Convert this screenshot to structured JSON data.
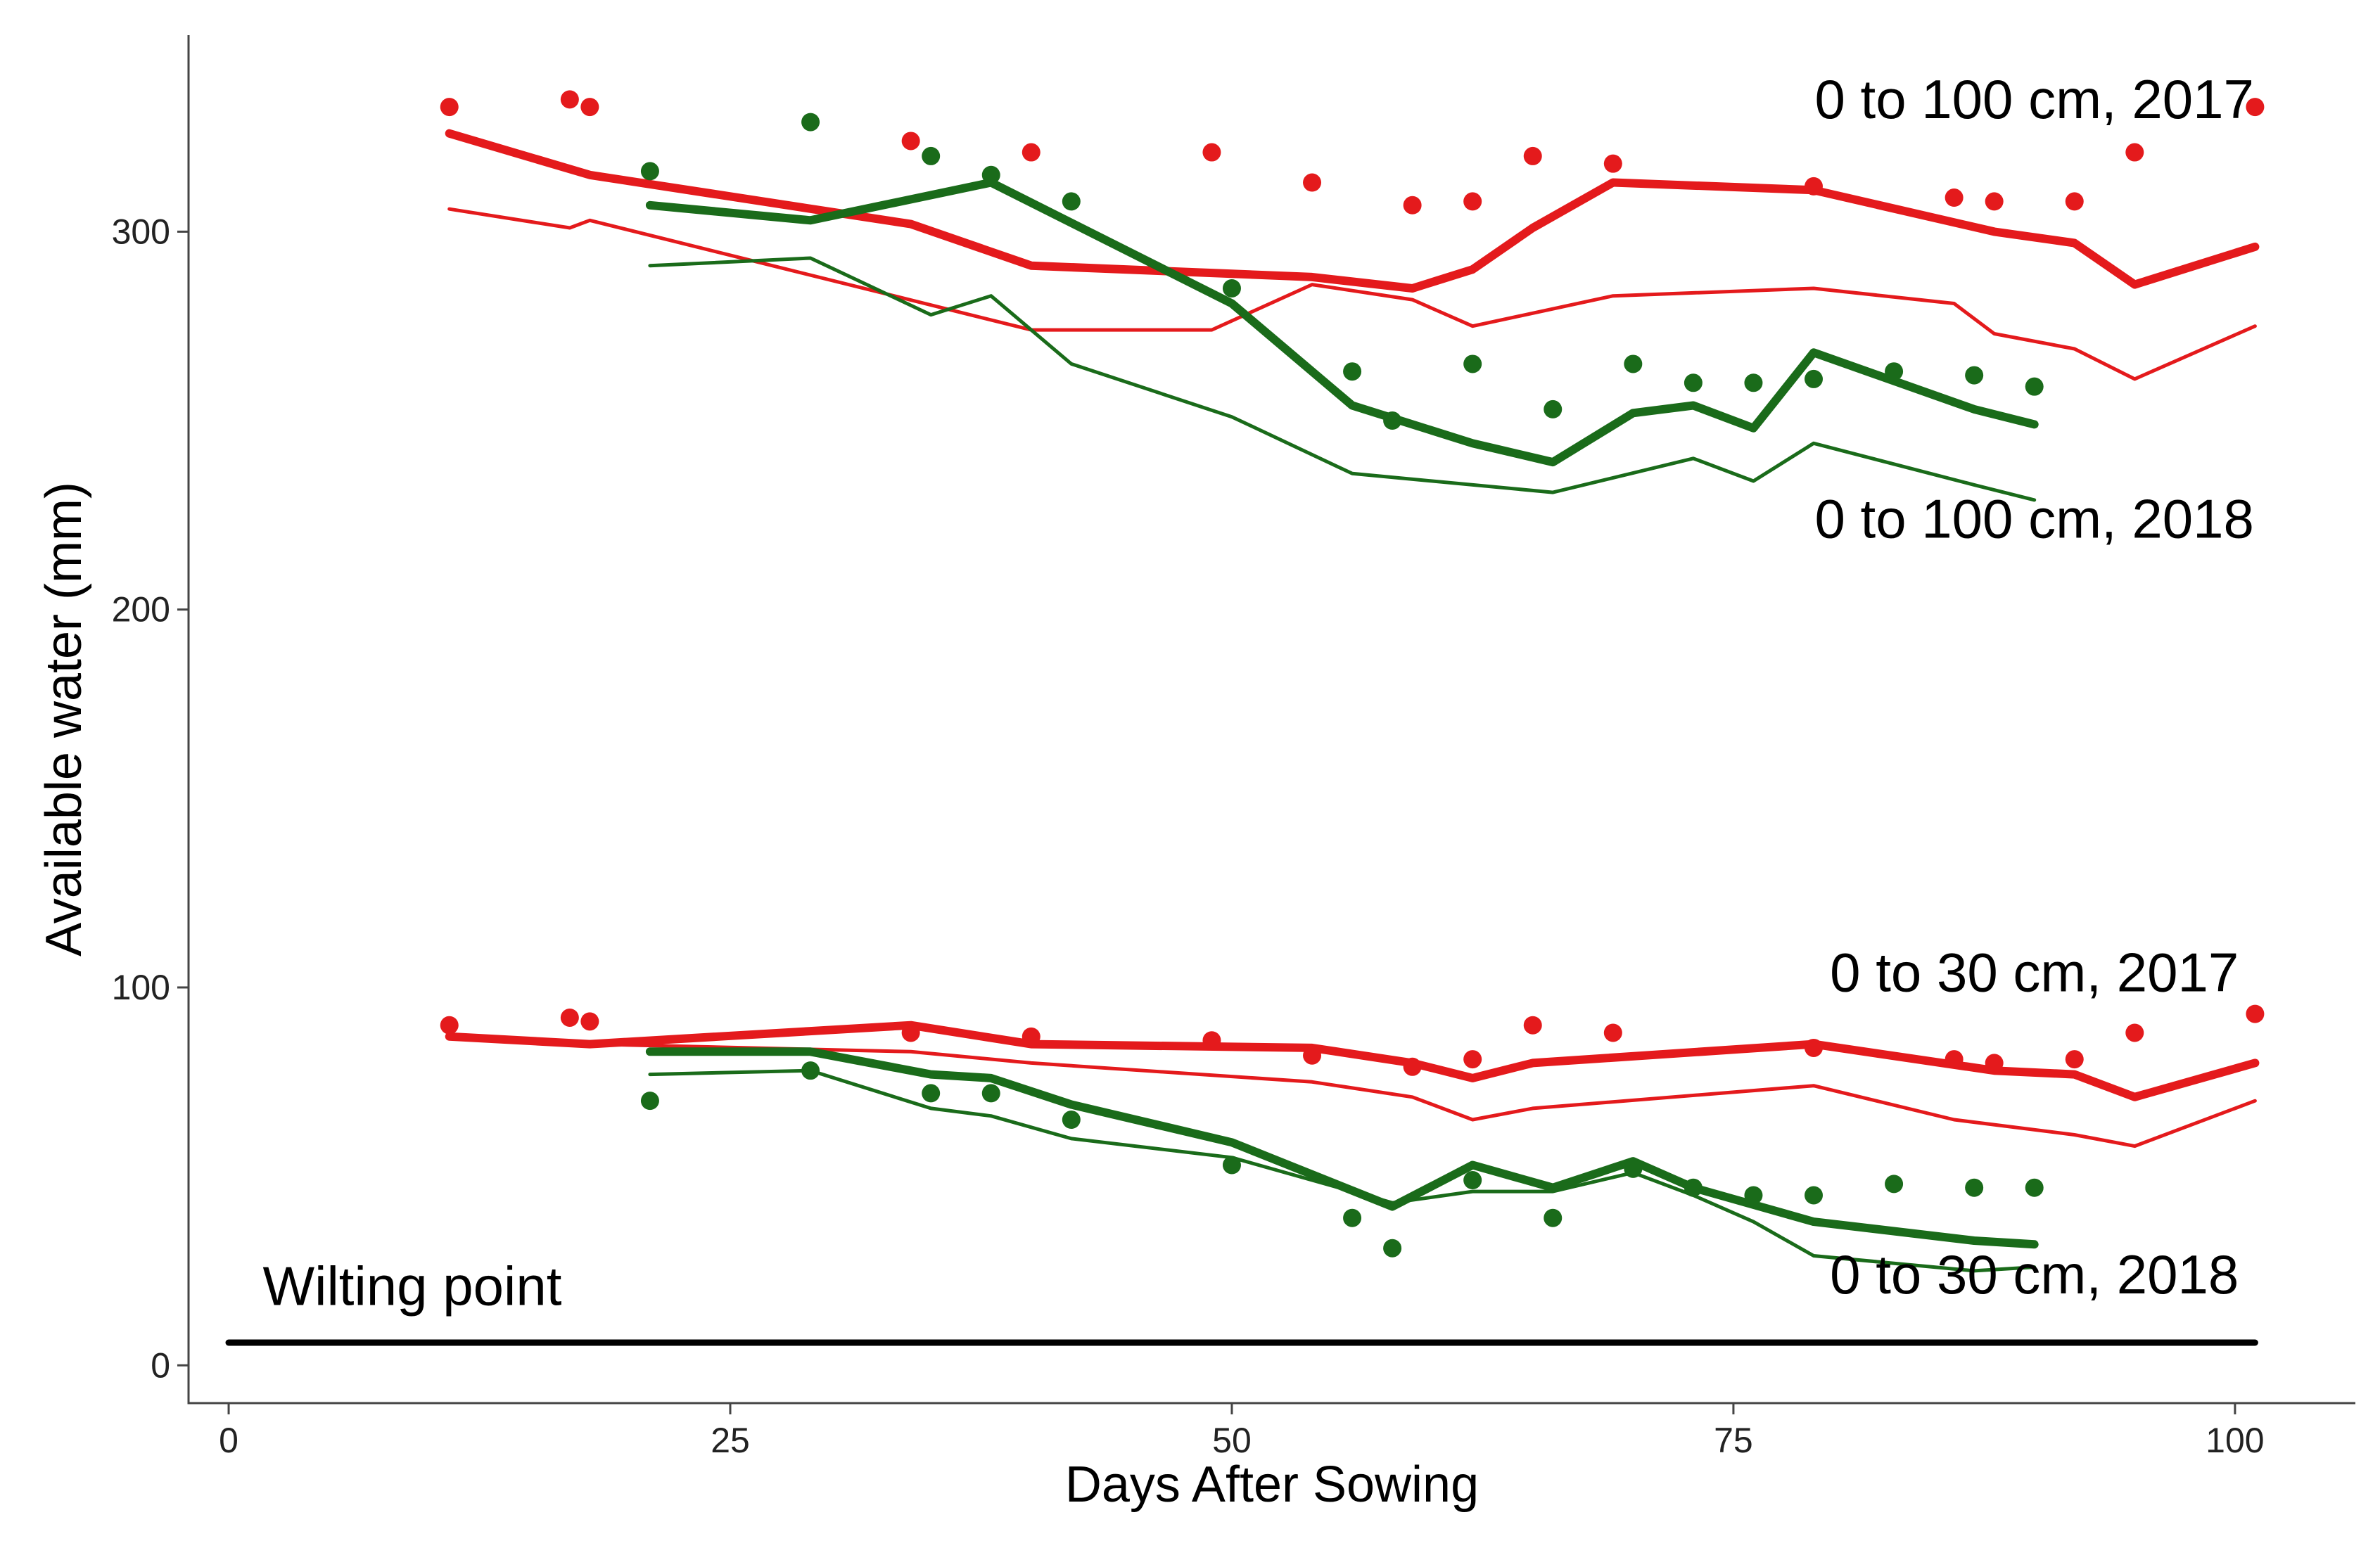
{
  "chart_data": {
    "type": "line",
    "title": "",
    "xlabel": "Days After Sowing",
    "ylabel": "Available water (mm)",
    "xlim": [
      -2,
      106
    ],
    "ylim": [
      -10,
      352
    ],
    "xticks": [
      0,
      25,
      50,
      75,
      100
    ],
    "yticks": [
      0,
      100,
      200,
      300
    ],
    "grid": false,
    "legend": "none",
    "colors": {
      "red": "#e41a1c",
      "green": "#1a6b1a",
      "black": "#000000"
    },
    "series": [
      {
        "name": "0-100 cm 2017 simulated (thick)",
        "color": "red",
        "width": 12,
        "x": [
          11,
          18,
          34,
          40,
          54,
          59,
          62,
          65,
          69,
          79,
          88,
          92,
          95,
          101
        ],
        "y": [
          326,
          315,
          302,
          291,
          288,
          285,
          290,
          301,
          313,
          311,
          300,
          297,
          286,
          296
        ]
      },
      {
        "name": "0-100 cm 2017 simulated (thin)",
        "color": "red",
        "width": 5,
        "x": [
          11,
          17,
          18,
          40,
          49,
          54,
          59,
          62,
          69,
          79,
          86,
          88,
          92,
          95,
          101
        ],
        "y": [
          306,
          301,
          303,
          274,
          274,
          286,
          282,
          275,
          283,
          285,
          281,
          273,
          269,
          261,
          275
        ]
      },
      {
        "name": "0-100 cm 2017 observed",
        "color": "red",
        "points": true,
        "x": [
          11,
          17,
          18,
          34,
          40,
          49,
          54,
          59,
          62,
          65,
          69,
          79,
          86,
          88,
          92,
          95,
          101
        ],
        "y": [
          333,
          335,
          333,
          324,
          321,
          321,
          313,
          307,
          308,
          320,
          318,
          312,
          309,
          308,
          308,
          321,
          333
        ]
      },
      {
        "name": "0-100 cm 2018 simulated (thick)",
        "color": "green",
        "width": 12,
        "x": [
          21,
          29,
          38,
          50,
          56,
          62,
          66,
          70,
          73,
          76,
          79,
          87,
          90
        ],
        "y": [
          307,
          303,
          313,
          281,
          254,
          244,
          239,
          252,
          254,
          248,
          268,
          253,
          249
        ]
      },
      {
        "name": "0-100 cm 2018 simulated (thin)",
        "color": "green",
        "width": 5,
        "x": [
          21,
          29,
          35,
          38,
          42,
          50,
          56,
          66,
          73,
          76,
          79,
          87,
          90
        ],
        "y": [
          291,
          293,
          278,
          283,
          265,
          251,
          236,
          231,
          240,
          234,
          244,
          233,
          229
        ]
      },
      {
        "name": "0-100 cm 2018 observed",
        "color": "green",
        "points": true,
        "x": [
          21,
          29,
          35,
          38,
          42,
          50,
          56,
          58,
          62,
          66,
          70,
          73,
          76,
          79,
          83,
          87,
          90
        ],
        "y": [
          316,
          329,
          320,
          315,
          308,
          285,
          263,
          250,
          265,
          253,
          265,
          260,
          260,
          261,
          263,
          262,
          259
        ]
      },
      {
        "name": "0-30 cm 2017 simulated (thick)",
        "color": "red",
        "width": 12,
        "x": [
          11,
          18,
          34,
          40,
          54,
          59,
          62,
          65,
          79,
          88,
          92,
          95,
          101
        ],
        "y": [
          87,
          85,
          90,
          85,
          84,
          80,
          76,
          80,
          85,
          78,
          77,
          71,
          80
        ]
      },
      {
        "name": "0-30 cm 2017 simulated (thin)",
        "color": "red",
        "width": 5,
        "x": [
          11,
          18,
          34,
          40,
          54,
          59,
          62,
          65,
          79,
          86,
          92,
          95,
          101
        ],
        "y": [
          87,
          85,
          83,
          80,
          75,
          71,
          65,
          68,
          74,
          65,
          61,
          58,
          70
        ]
      },
      {
        "name": "0-30 cm 2017 observed",
        "color": "red",
        "points": true,
        "x": [
          11,
          17,
          18,
          34,
          40,
          49,
          54,
          59,
          62,
          65,
          69,
          79,
          86,
          88,
          92,
          95,
          101
        ],
        "y": [
          90,
          92,
          91,
          88,
          87,
          86,
          82,
          79,
          81,
          90,
          88,
          84,
          81,
          80,
          81,
          88,
          93
        ]
      },
      {
        "name": "0-30 cm 2018 simulated (thick)",
        "color": "green",
        "width": 12,
        "x": [
          21,
          29,
          35,
          38,
          42,
          50,
          58,
          62,
          66,
          70,
          73,
          79,
          87,
          90
        ],
        "y": [
          83,
          83,
          77,
          76,
          69,
          59,
          42,
          53,
          47,
          54,
          47,
          38,
          33,
          32
        ]
      },
      {
        "name": "0-30 cm 2018 simulated (thin)",
        "color": "green",
        "width": 5,
        "x": [
          21,
          29,
          35,
          38,
          42,
          50,
          58,
          62,
          66,
          70,
          73,
          76,
          79,
          87,
          90
        ],
        "y": [
          77,
          78,
          68,
          66,
          60,
          55,
          43,
          46,
          46,
          51,
          45,
          38,
          29,
          25,
          26
        ]
      },
      {
        "name": "0-30 cm 2018 observed",
        "color": "green",
        "points": true,
        "x": [
          21,
          29,
          35,
          38,
          42,
          50,
          56,
          58,
          62,
          66,
          70,
          73,
          76,
          79,
          83,
          87,
          90
        ],
        "y": [
          70,
          78,
          72,
          72,
          65,
          53,
          39,
          31,
          49,
          39,
          52,
          47,
          45,
          45,
          48,
          47,
          47
        ]
      },
      {
        "name": "Wilting point",
        "color": "black",
        "width": 9,
        "x": [
          0,
          101
        ],
        "y": [
          6,
          6
        ]
      }
    ],
    "annotations": [
      {
        "text": "0 to 100 cm, 2017",
        "x": 90,
        "y": 330
      },
      {
        "text": "0 to 100 cm, 2018",
        "x": 90,
        "y": 219
      },
      {
        "text": "0 to 30 cm, 2017",
        "x": 90,
        "y": 99
      },
      {
        "text": "0 to 30 cm, 2018",
        "x": 90,
        "y": 19
      },
      {
        "text": "Wilting point",
        "x": 1.7,
        "y": 16
      }
    ]
  }
}
